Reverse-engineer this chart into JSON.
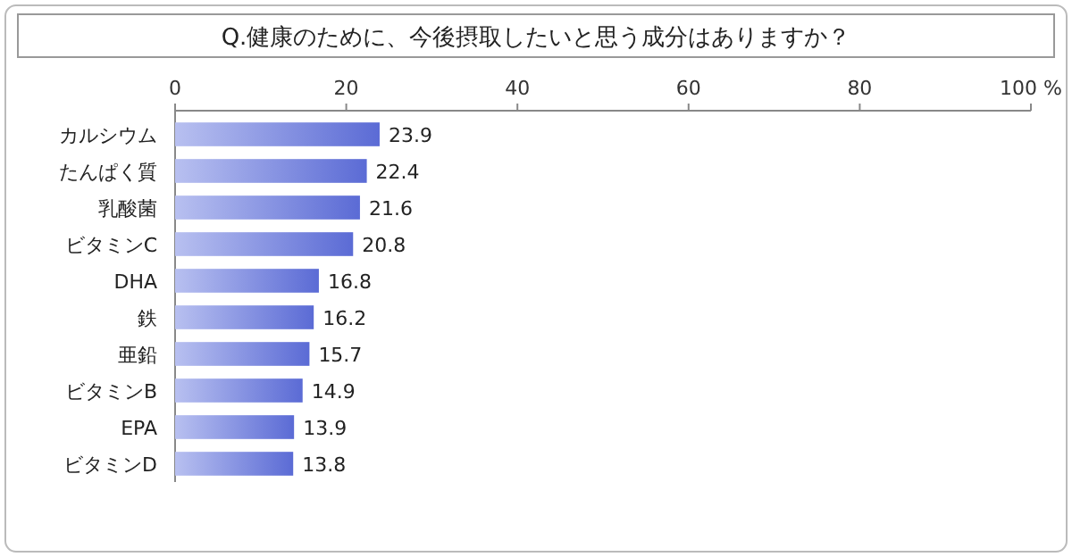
{
  "chart_data": {
    "type": "bar",
    "orientation": "horizontal",
    "title": "Q.健康のために、今後摂取したいと思う成分はありますか？",
    "categories": [
      "カルシウム",
      "たんぱく質",
      "乳酸菌",
      "ビタミンC",
      "DHA",
      "鉄",
      "亜鉛",
      "ビタミンB",
      "EPA",
      "ビタミンD"
    ],
    "values": [
      23.9,
      22.4,
      21.6,
      20.8,
      16.8,
      16.2,
      15.7,
      14.9,
      13.9,
      13.8
    ],
    "color": "#5b6bd5",
    "xlim": [
      0,
      100
    ],
    "xticks": [
      0,
      20,
      40,
      60,
      80,
      {
        "value": 100,
        "label": "100 %"
      }
    ],
    "data_labels": true
  }
}
